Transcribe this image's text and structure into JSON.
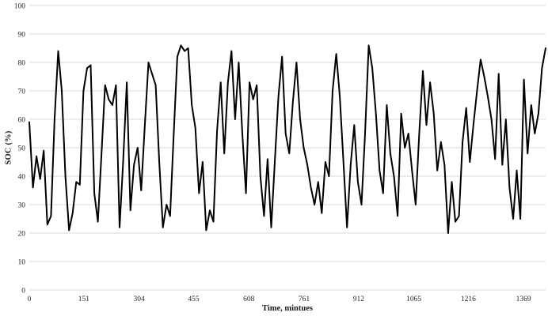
{
  "chart_data": {
    "type": "line",
    "title": "",
    "xlabel": "Time, mintues",
    "ylabel": "SOC (%)",
    "xlim": [
      0,
      1430
    ],
    "ylim": [
      0,
      100
    ],
    "yticks": [
      0,
      10,
      20,
      30,
      40,
      50,
      60,
      70,
      80,
      90,
      100
    ],
    "xticks": [
      0,
      151,
      304,
      455,
      608,
      761,
      912,
      1065,
      1216,
      1369
    ],
    "grid": "horizontal",
    "legend_position": "none",
    "colors": {
      "line": "#000000",
      "grid": "#d9d9d9",
      "tick_text": "#262626",
      "background": "#ffffff"
    },
    "line_width": 2,
    "series": [
      {
        "name": "SOC",
        "x": [
          0,
          10,
          20,
          30,
          40,
          50,
          60,
          70,
          80,
          90,
          100,
          110,
          120,
          130,
          140,
          150,
          160,
          170,
          180,
          190,
          200,
          210,
          220,
          230,
          240,
          250,
          260,
          270,
          280,
          290,
          300,
          310,
          320,
          330,
          340,
          350,
          360,
          370,
          380,
          390,
          400,
          410,
          420,
          430,
          440,
          450,
          460,
          470,
          480,
          490,
          500,
          510,
          520,
          530,
          540,
          550,
          560,
          570,
          580,
          590,
          600,
          610,
          620,
          630,
          640,
          650,
          660,
          670,
          680,
          690,
          700,
          710,
          720,
          730,
          740,
          750,
          760,
          770,
          780,
          790,
          800,
          810,
          820,
          830,
          840,
          850,
          860,
          870,
          880,
          890,
          900,
          910,
          920,
          930,
          940,
          950,
          960,
          970,
          980,
          990,
          1000,
          1010,
          1020,
          1030,
          1040,
          1050,
          1060,
          1070,
          1080,
          1090,
          1100,
          1110,
          1120,
          1130,
          1140,
          1150,
          1160,
          1170,
          1180,
          1190,
          1200,
          1210,
          1220,
          1230,
          1240,
          1250,
          1260,
          1270,
          1280,
          1290,
          1300,
          1310,
          1320,
          1330,
          1340,
          1350,
          1360,
          1370,
          1380,
          1390,
          1400,
          1410,
          1420,
          1430
        ],
        "y": [
          59,
          36,
          47,
          39,
          49,
          23,
          26,
          60,
          84,
          70,
          40,
          21,
          27,
          38,
          37,
          70,
          78,
          79,
          34,
          24,
          48,
          72,
          67,
          65,
          72,
          22,
          45,
          73,
          28,
          44,
          50,
          35,
          58,
          80,
          76,
          72,
          45,
          22,
          30,
          26,
          55,
          82,
          86,
          84,
          85,
          65,
          57,
          34,
          45,
          21,
          28,
          24,
          56,
          73,
          48,
          73,
          84,
          60,
          80,
          55,
          34,
          73,
          67,
          72,
          40,
          26,
          46,
          22,
          45,
          68,
          82,
          55,
          48,
          66,
          80,
          60,
          50,
          44,
          36,
          30,
          38,
          27,
          45,
          40,
          70,
          83,
          68,
          45,
          22,
          44,
          58,
          38,
          30,
          55,
          86,
          78,
          62,
          42,
          34,
          65,
          48,
          40,
          26,
          62,
          50,
          55,
          42,
          30,
          55,
          77,
          58,
          73,
          62,
          42,
          52,
          44,
          20,
          38,
          24,
          26,
          52,
          64,
          45,
          58,
          70,
          81,
          75,
          68,
          60,
          46,
          76,
          44,
          60,
          36,
          25,
          42,
          25,
          74,
          48,
          65,
          55,
          62,
          78,
          85
        ]
      }
    ]
  }
}
